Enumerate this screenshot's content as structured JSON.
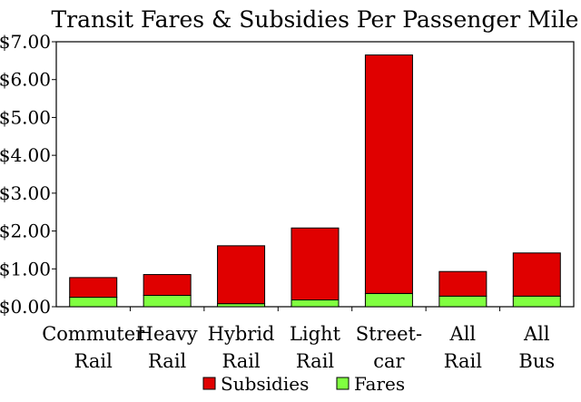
{
  "chart_data": {
    "type": "bar",
    "stacked": true,
    "title": "Transit Fares & Subsidies Per Passenger Mile",
    "xlabel": "",
    "ylabel": "",
    "ylim": [
      0,
      7
    ],
    "yticks": [
      "$0.00",
      "$1.00",
      "$2.00",
      "$3.00",
      "$4.00",
      "$5.00",
      "$6.00",
      "$7.00"
    ],
    "grid": false,
    "legend_position": "bottom",
    "categories": [
      [
        "Commuter",
        "Rail"
      ],
      [
        "Heavy",
        "Rail"
      ],
      [
        "Hybrid",
        "Rail"
      ],
      [
        "Light",
        "Rail"
      ],
      [
        "Street-",
        "car"
      ],
      [
        "All",
        "Rail"
      ],
      [
        "All",
        "Bus"
      ]
    ],
    "series": [
      {
        "name": "Fares",
        "color": "#80ff40",
        "values": [
          0.25,
          0.3,
          0.08,
          0.18,
          0.35,
          0.28,
          0.28
        ]
      },
      {
        "name": "Subsidies",
        "color": "#e00000",
        "values": [
          0.52,
          0.55,
          1.53,
          1.9,
          6.3,
          0.65,
          1.14
        ]
      }
    ],
    "legend_order": [
      "Subsidies",
      "Fares"
    ]
  }
}
